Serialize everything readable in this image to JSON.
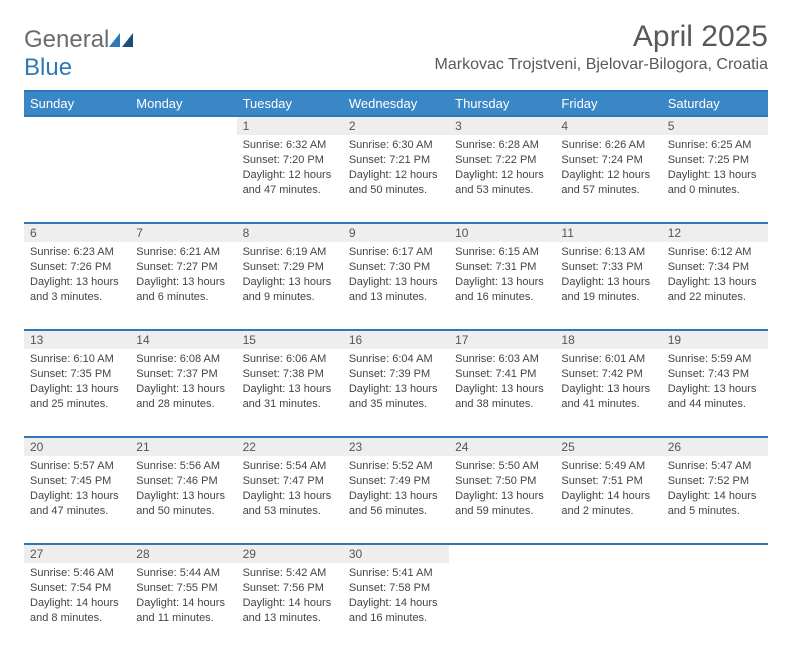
{
  "brand": {
    "first": "General",
    "second": "Blue"
  },
  "colors": {
    "header_bg": "#3a87c7",
    "accent": "#2f78b7",
    "daynum_bg": "#eeeeee",
    "text": "#444444",
    "title": "#58595b"
  },
  "title": "April 2025",
  "subtitle": "Markovac Trojstveni, Bjelovar-Bilogora, Croatia",
  "day_names": [
    "Sunday",
    "Monday",
    "Tuesday",
    "Wednesday",
    "Thursday",
    "Friday",
    "Saturday"
  ],
  "weeks": [
    [
      null,
      null,
      {
        "d": "1",
        "sr": "Sunrise: 6:32 AM",
        "ss": "Sunset: 7:20 PM",
        "dl": "Daylight: 12 hours and 47 minutes."
      },
      {
        "d": "2",
        "sr": "Sunrise: 6:30 AM",
        "ss": "Sunset: 7:21 PM",
        "dl": "Daylight: 12 hours and 50 minutes."
      },
      {
        "d": "3",
        "sr": "Sunrise: 6:28 AM",
        "ss": "Sunset: 7:22 PM",
        "dl": "Daylight: 12 hours and 53 minutes."
      },
      {
        "d": "4",
        "sr": "Sunrise: 6:26 AM",
        "ss": "Sunset: 7:24 PM",
        "dl": "Daylight: 12 hours and 57 minutes."
      },
      {
        "d": "5",
        "sr": "Sunrise: 6:25 AM",
        "ss": "Sunset: 7:25 PM",
        "dl": "Daylight: 13 hours and 0 minutes."
      }
    ],
    [
      {
        "d": "6",
        "sr": "Sunrise: 6:23 AM",
        "ss": "Sunset: 7:26 PM",
        "dl": "Daylight: 13 hours and 3 minutes."
      },
      {
        "d": "7",
        "sr": "Sunrise: 6:21 AM",
        "ss": "Sunset: 7:27 PM",
        "dl": "Daylight: 13 hours and 6 minutes."
      },
      {
        "d": "8",
        "sr": "Sunrise: 6:19 AM",
        "ss": "Sunset: 7:29 PM",
        "dl": "Daylight: 13 hours and 9 minutes."
      },
      {
        "d": "9",
        "sr": "Sunrise: 6:17 AM",
        "ss": "Sunset: 7:30 PM",
        "dl": "Daylight: 13 hours and 13 minutes."
      },
      {
        "d": "10",
        "sr": "Sunrise: 6:15 AM",
        "ss": "Sunset: 7:31 PM",
        "dl": "Daylight: 13 hours and 16 minutes."
      },
      {
        "d": "11",
        "sr": "Sunrise: 6:13 AM",
        "ss": "Sunset: 7:33 PM",
        "dl": "Daylight: 13 hours and 19 minutes."
      },
      {
        "d": "12",
        "sr": "Sunrise: 6:12 AM",
        "ss": "Sunset: 7:34 PM",
        "dl": "Daylight: 13 hours and 22 minutes."
      }
    ],
    [
      {
        "d": "13",
        "sr": "Sunrise: 6:10 AM",
        "ss": "Sunset: 7:35 PM",
        "dl": "Daylight: 13 hours and 25 minutes."
      },
      {
        "d": "14",
        "sr": "Sunrise: 6:08 AM",
        "ss": "Sunset: 7:37 PM",
        "dl": "Daylight: 13 hours and 28 minutes."
      },
      {
        "d": "15",
        "sr": "Sunrise: 6:06 AM",
        "ss": "Sunset: 7:38 PM",
        "dl": "Daylight: 13 hours and 31 minutes."
      },
      {
        "d": "16",
        "sr": "Sunrise: 6:04 AM",
        "ss": "Sunset: 7:39 PM",
        "dl": "Daylight: 13 hours and 35 minutes."
      },
      {
        "d": "17",
        "sr": "Sunrise: 6:03 AM",
        "ss": "Sunset: 7:41 PM",
        "dl": "Daylight: 13 hours and 38 minutes."
      },
      {
        "d": "18",
        "sr": "Sunrise: 6:01 AM",
        "ss": "Sunset: 7:42 PM",
        "dl": "Daylight: 13 hours and 41 minutes."
      },
      {
        "d": "19",
        "sr": "Sunrise: 5:59 AM",
        "ss": "Sunset: 7:43 PM",
        "dl": "Daylight: 13 hours and 44 minutes."
      }
    ],
    [
      {
        "d": "20",
        "sr": "Sunrise: 5:57 AM",
        "ss": "Sunset: 7:45 PM",
        "dl": "Daylight: 13 hours and 47 minutes."
      },
      {
        "d": "21",
        "sr": "Sunrise: 5:56 AM",
        "ss": "Sunset: 7:46 PM",
        "dl": "Daylight: 13 hours and 50 minutes."
      },
      {
        "d": "22",
        "sr": "Sunrise: 5:54 AM",
        "ss": "Sunset: 7:47 PM",
        "dl": "Daylight: 13 hours and 53 minutes."
      },
      {
        "d": "23",
        "sr": "Sunrise: 5:52 AM",
        "ss": "Sunset: 7:49 PM",
        "dl": "Daylight: 13 hours and 56 minutes."
      },
      {
        "d": "24",
        "sr": "Sunrise: 5:50 AM",
        "ss": "Sunset: 7:50 PM",
        "dl": "Daylight: 13 hours and 59 minutes."
      },
      {
        "d": "25",
        "sr": "Sunrise: 5:49 AM",
        "ss": "Sunset: 7:51 PM",
        "dl": "Daylight: 14 hours and 2 minutes."
      },
      {
        "d": "26",
        "sr": "Sunrise: 5:47 AM",
        "ss": "Sunset: 7:52 PM",
        "dl": "Daylight: 14 hours and 5 minutes."
      }
    ],
    [
      {
        "d": "27",
        "sr": "Sunrise: 5:46 AM",
        "ss": "Sunset: 7:54 PM",
        "dl": "Daylight: 14 hours and 8 minutes."
      },
      {
        "d": "28",
        "sr": "Sunrise: 5:44 AM",
        "ss": "Sunset: 7:55 PM",
        "dl": "Daylight: 14 hours and 11 minutes."
      },
      {
        "d": "29",
        "sr": "Sunrise: 5:42 AM",
        "ss": "Sunset: 7:56 PM",
        "dl": "Daylight: 14 hours and 13 minutes."
      },
      {
        "d": "30",
        "sr": "Sunrise: 5:41 AM",
        "ss": "Sunset: 7:58 PM",
        "dl": "Daylight: 14 hours and 16 minutes."
      },
      null,
      null,
      null
    ]
  ]
}
